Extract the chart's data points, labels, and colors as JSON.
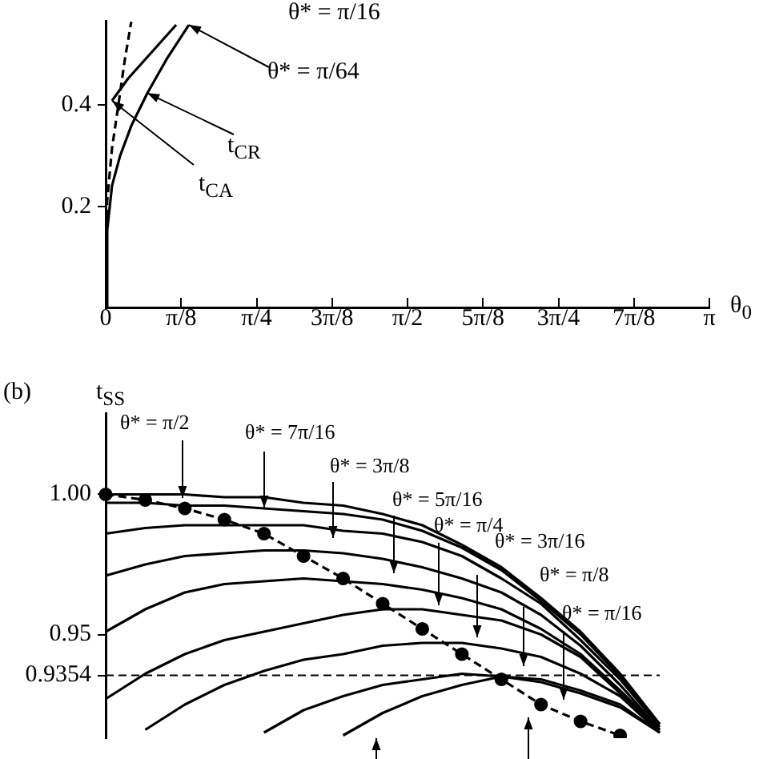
{
  "chart_data": [
    {
      "type": "line",
      "xlabel": "θ$_{0}$",
      "xlim": [
        0,
        3.1416
      ],
      "ylim": [
        0,
        0.567
      ],
      "xticks": [
        {
          "value": 0,
          "label": "0"
        },
        {
          "value": 0.3927,
          "label": "π/8"
        },
        {
          "value": 0.7854,
          "label": "π/4"
        },
        {
          "value": 1.1781,
          "label": "3π/8"
        },
        {
          "value": 1.5708,
          "label": "π/2"
        },
        {
          "value": 1.9635,
          "label": "5π/8"
        },
        {
          "value": 2.3562,
          "label": "3π/4"
        },
        {
          "value": 2.7489,
          "label": "7π/8"
        },
        {
          "value": 3.1416,
          "label": "π"
        }
      ],
      "yticks": [
        0.2,
        0.4
      ],
      "grid": false,
      "legend": false,
      "marker": "none",
      "annotations": [
        "θ* = π/16",
        {
          "text": "θ* = π/64",
          "x": 0.433,
          "y": 0.559
        },
        {
          "text": "t$_{CR}$",
          "x": 0.217,
          "y": 0.424
        },
        {
          "text": "t$_{CA}$",
          "x": 0.033,
          "y": 0.409
        }
      ],
      "series": [
        {
          "color": "#000000",
          "x": [
            0,
            0.008,
            0.033,
            0.075,
            0.133,
            0.217,
            0.317,
            0.433
          ],
          "values": [
            0,
            0.153,
            0.241,
            0.3,
            0.359,
            0.424,
            0.491,
            0.559
          ]
        },
        {
          "color": "#000000",
          "x": [
            0.033,
            0.117,
            0.242,
            0.367
          ],
          "values": [
            0.409,
            0.453,
            0.506,
            0.559
          ]
        },
        {
          "color": "#000000",
          "line_style": "dashed",
          "x": [
            0,
            0.008,
            0.033,
            0.067,
            0.1,
            0.133
          ],
          "values": [
            0,
            0.212,
            0.315,
            0.403,
            0.491,
            0.565
          ]
        }
      ]
    },
    {
      "type": "line",
      "ylabel": "t$_{SS}$",
      "ylim": [
        0.913,
        1.029
      ],
      "yticks": [
        {
          "value": 1,
          "label": "1.00"
        },
        0.95,
        0.9354
      ],
      "tick_labels": "y",
      "grid": false,
      "legend": false,
      "marker": "none",
      "categories": [
        null,
        null,
        null,
        null,
        null,
        null,
        null,
        null,
        null,
        null,
        null,
        null,
        null,
        null,
        null
      ],
      "ref_lines": [
        {
          "axis": "y",
          "value": 0.9354,
          "line_style": "dashed"
        }
      ],
      "annotations": [
        "(b)",
        "θ* = π/2",
        "θ* = 7π/16",
        "θ* = 3π/8",
        "θ* = 5π/16",
        "θ* = π/4",
        "θ* = 3π/16",
        "θ* = π/8",
        "θ* = π/16"
      ],
      "series": [
        {
          "color": "#000000",
          "values": [
            1.0,
            1.0,
            1.0,
            0.999,
            0.999,
            0.997,
            0.996,
            0.993,
            0.989,
            0.982,
            0.974,
            0.963,
            0.951,
            0.936,
            0.918
          ]
        },
        {
          "color": "#000000",
          "values": [
            0.997,
            0.997,
            0.996,
            0.996,
            0.995,
            0.994,
            0.993,
            0.991,
            0.987,
            0.981,
            0.973,
            0.962,
            0.95,
            0.935,
            0.918
          ]
        },
        {
          "color": "#000000",
          "values": [
            0.986,
            0.988,
            0.989,
            0.989,
            0.989,
            0.989,
            0.987,
            0.986,
            0.983,
            0.978,
            0.97,
            0.961,
            0.948,
            0.934,
            0.917
          ]
        },
        {
          "color": "#000000",
          "values": [
            0.971,
            0.975,
            0.978,
            0.979,
            0.98,
            0.98,
            0.979,
            0.977,
            0.974,
            0.97,
            0.965,
            0.957,
            0.946,
            0.932,
            0.916
          ]
        },
        {
          "color": "#000000",
          "values": [
            0.951,
            0.959,
            0.965,
            0.968,
            0.969,
            0.97,
            0.969,
            0.968,
            0.966,
            0.963,
            0.959,
            0.952,
            0.943,
            0.93,
            0.916
          ]
        },
        {
          "color": "#000000",
          "values": [
            0.927,
            0.936,
            0.943,
            0.948,
            0.951,
            0.954,
            0.957,
            0.959,
            0.959,
            0.957,
            0.955,
            0.95,
            0.942,
            0.929,
            0.916
          ]
        },
        {
          "color": "#000000",
          "values": [
            null,
            0.916,
            0.925,
            0.932,
            0.937,
            0.941,
            0.943,
            0.946,
            0.947,
            0.947,
            0.945,
            0.942,
            0.936,
            0.928,
            0.915
          ]
        },
        {
          "color": "#000000",
          "values": [
            null,
            null,
            null,
            null,
            0.915,
            0.923,
            0.928,
            0.932,
            0.934,
            0.936,
            0.935,
            0.933,
            0.929,
            0.924,
            0.915
          ]
        },
        {
          "color": "#000000",
          "values": [
            null,
            null,
            null,
            null,
            null,
            null,
            0.914,
            0.922,
            0.928,
            0.932,
            0.935,
            0.934,
            0.93,
            0.925,
            0.915
          ]
        },
        {
          "color": "#000000",
          "line_style": "dashed",
          "marker": "circle",
          "values": [
            1.0,
            0.998,
            0.995,
            0.991,
            0.986,
            0.978,
            0.97,
            0.961,
            0.952,
            0.943,
            0.934,
            0.925,
            0.919,
            0.914,
            null
          ]
        }
      ]
    }
  ]
}
